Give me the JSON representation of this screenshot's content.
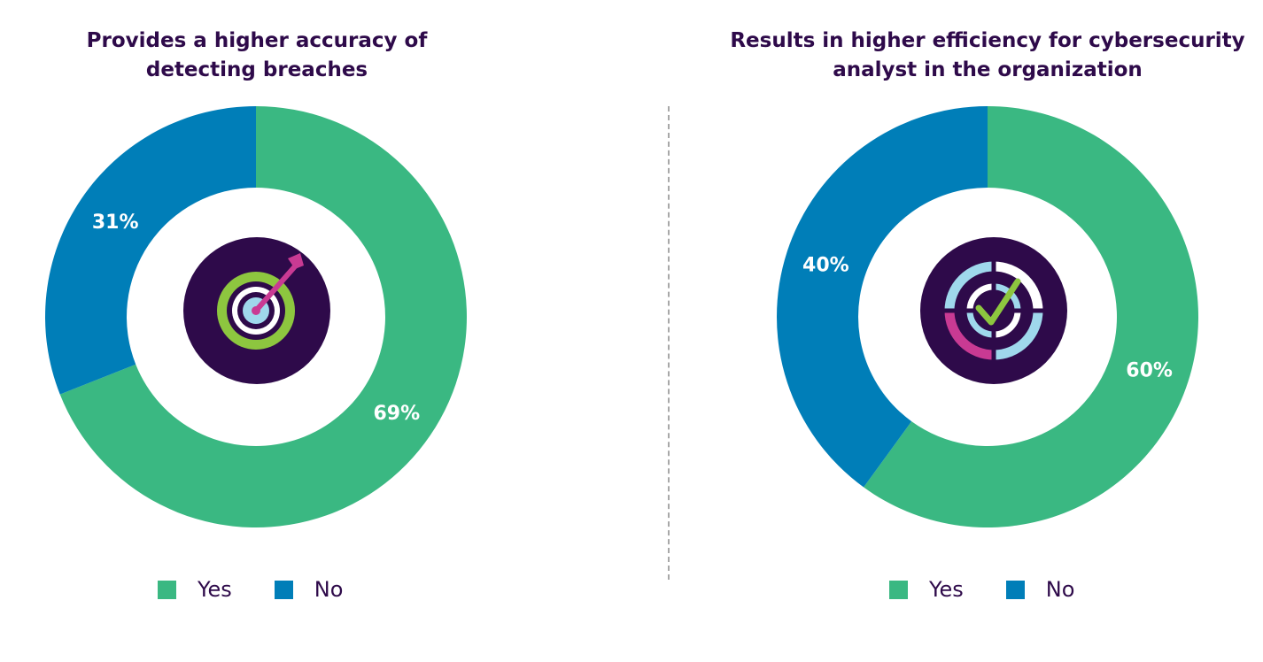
{
  "chart_data": [
    {
      "type": "pie",
      "title": "Provides a higher accuracy of\ndetecting breaches",
      "categories": [
        "Yes",
        "No"
      ],
      "values": [
        69,
        31
      ],
      "labels": [
        "69%",
        "31%"
      ],
      "colors": [
        "#3ab882",
        "#007eb8"
      ],
      "legend": "bottom",
      "center_icon": "target-arrow-icon"
    },
    {
      "type": "pie",
      "title": "Results in higher efficiency for cybersecurity\nanalyst in the organization",
      "categories": [
        "Yes",
        "No"
      ],
      "values": [
        60,
        40
      ],
      "labels": [
        "60%",
        "40%"
      ],
      "colors": [
        "#3ab882",
        "#007eb8"
      ],
      "legend": "bottom",
      "center_icon": "progress-check-icon"
    }
  ],
  "legend": {
    "items": [
      {
        "label": "Yes",
        "color": "#3ab882"
      },
      {
        "label": "No",
        "color": "#007eb8"
      }
    ]
  },
  "colors": {
    "title": "#2e0a4a",
    "icon_bg": "#2e0a4a"
  }
}
